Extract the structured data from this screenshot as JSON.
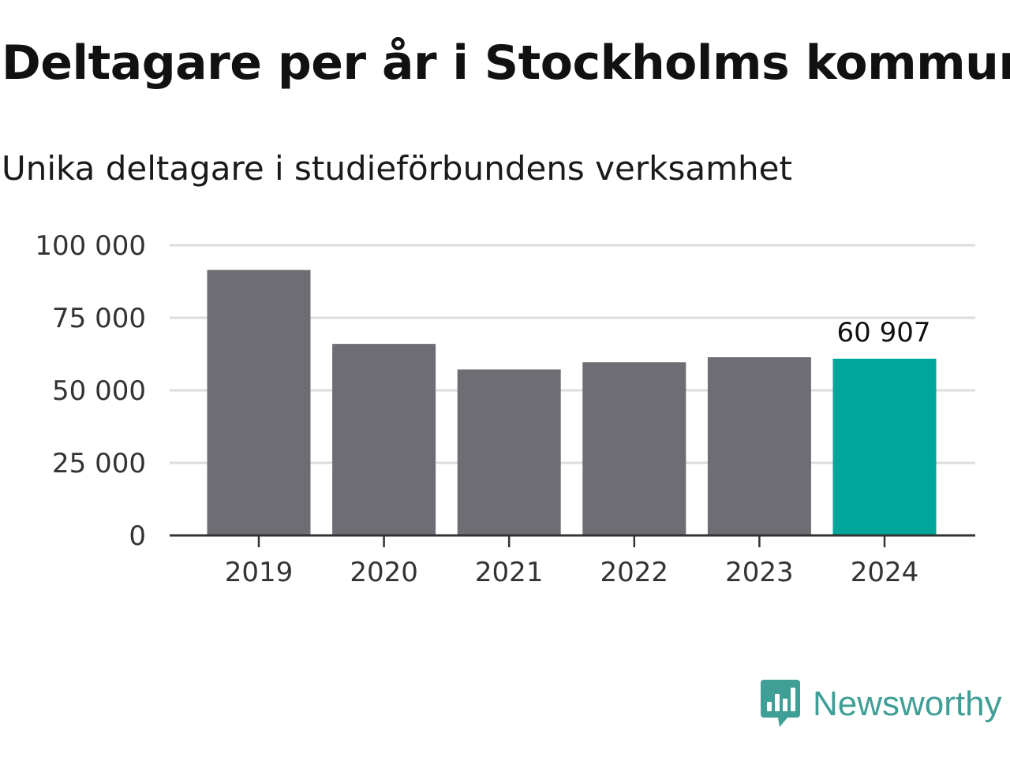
{
  "title": "Deltagare per år i Stockholms kommun",
  "subtitle": "Unika deltagare i studieförbundens verksamhet",
  "brand": {
    "name": "Newsworthy",
    "color": "#3f9e95",
    "icon": "newsworthy-logo-icon"
  },
  "chart_data": {
    "type": "bar",
    "categories": [
      "2019",
      "2020",
      "2021",
      "2022",
      "2023",
      "2024"
    ],
    "values": [
      91500,
      66000,
      57200,
      59700,
      61400,
      60907
    ],
    "ylim": [
      0,
      100000
    ],
    "yticks": [
      0,
      25000,
      50000,
      75000,
      100000
    ],
    "ytick_labels": [
      "0",
      "25 000",
      "50 000",
      "75 000",
      "100 000"
    ],
    "highlight_index": 5,
    "highlight_label": "60 907",
    "bar_color": "#6e6d73",
    "highlight_color": "#00a69a",
    "grid": true,
    "grid_color": "#dddddd",
    "axis_color": "#333333"
  }
}
